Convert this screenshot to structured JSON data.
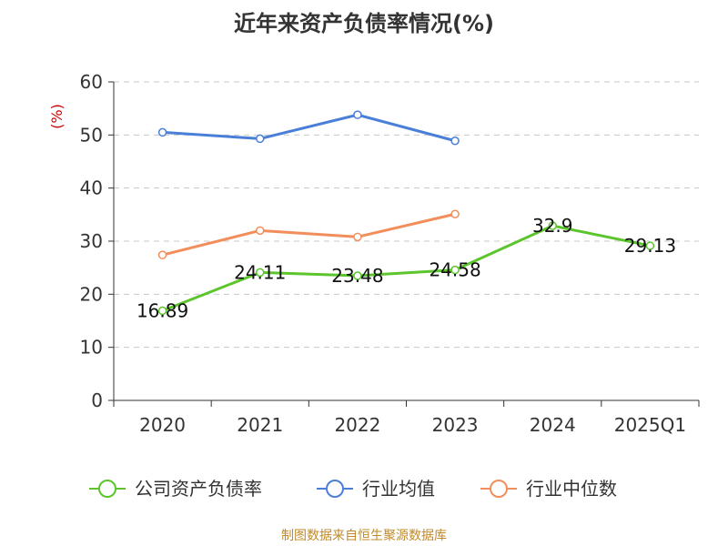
{
  "chart_data": {
    "type": "line",
    "title": "近年来资产负债率情况(%)",
    "ylabel": "(%)",
    "xlabel": "",
    "categories": [
      "2020",
      "2021",
      "2022",
      "2023",
      "2024",
      "2025Q1"
    ],
    "ylim": [
      0,
      60
    ],
    "yticks": [
      "0",
      "10",
      "20",
      "30",
      "40",
      "50",
      "60"
    ],
    "grid": true,
    "legend_position": "bottom",
    "series": [
      {
        "name": "公司资产负债率",
        "color": "#5bc52b",
        "values": [
          16.89,
          24.11,
          23.48,
          24.58,
          32.9,
          29.13
        ],
        "labels": [
          "16.89",
          "24.11",
          "23.48",
          "24.58",
          "32.9",
          "29.13"
        ]
      },
      {
        "name": "行业均值",
        "color": "#4a7fd8",
        "values": [
          50.5,
          49.3,
          53.8,
          48.9,
          null,
          null
        ]
      },
      {
        "name": "行业中位数",
        "color": "#f28e5b",
        "values": [
          27.4,
          32.0,
          30.8,
          35.1,
          null,
          null
        ]
      }
    ]
  },
  "footer": {
    "source": "制图数据来自恒生聚源数据库"
  }
}
